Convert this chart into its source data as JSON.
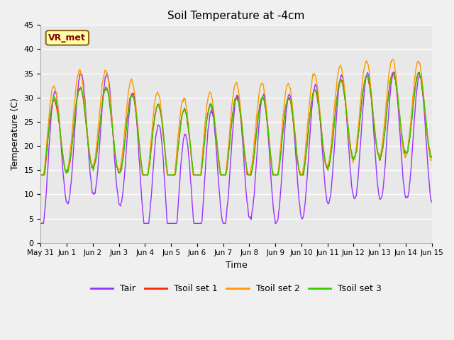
{
  "title": "Soil Temperature at -4cm",
  "xlabel": "Time",
  "ylabel": "Temperature (C)",
  "ylim": [
    0,
    45
  ],
  "yticks": [
    0,
    5,
    10,
    15,
    20,
    25,
    30,
    35,
    40,
    45
  ],
  "xtick_labels": [
    "May 31",
    "Jun 1",
    "Jun 2",
    "Jun 3",
    "Jun 4",
    "Jun 5",
    "Jun 6",
    "Jun 7",
    "Jun 8",
    "Jun 9",
    "Jun 10",
    "Jun 11",
    "Jun 12",
    "Jun 13",
    "Jun 14",
    "Jun 15"
  ],
  "annotation_text": "VR_met",
  "color_tair": "#9933FF",
  "color_tsoil1": "#FF2200",
  "color_tsoil2": "#FF9900",
  "color_tsoil3": "#33CC00",
  "legend_labels": [
    "Tair",
    "Tsoil set 1",
    "Tsoil set 2",
    "Tsoil set 3"
  ],
  "fig_bg": "#F0F0F0",
  "ax_bg": "#E8E8E8",
  "n_days": 15
}
